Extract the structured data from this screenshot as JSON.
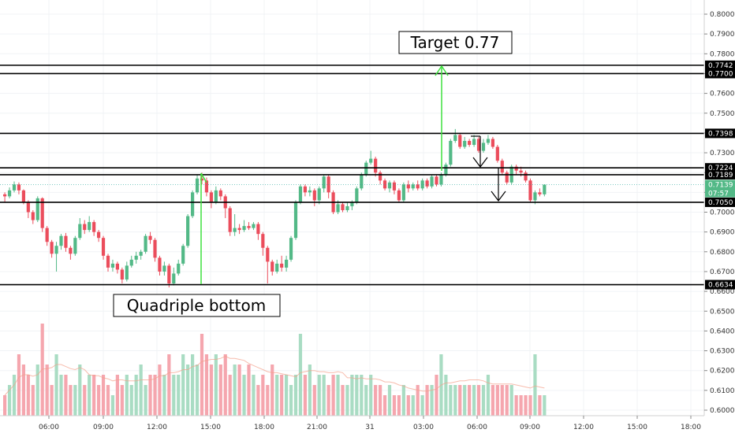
{
  "chart_data": {
    "type": "candlestick",
    "y_axis": {
      "ticks": [
        "0.8000",
        "0.7900",
        "0.7800",
        "0.7700",
        "0.7600",
        "0.7500",
        "0.7400",
        "0.7300",
        "0.7200",
        "0.7100",
        "0.7000",
        "0.6900",
        "0.6800",
        "0.6700",
        "0.6600",
        "0.6500",
        "0.6400",
        "0.6300",
        "0.6200",
        "0.6100",
        "0.6000"
      ],
      "range": [
        0.5975,
        0.8025
      ],
      "side": "right"
    },
    "x_axis": {
      "ticks": [
        "06:00",
        "09:00",
        "12:00",
        "15:00",
        "18:00",
        "21:00",
        "31",
        "03:00",
        "06:00",
        "09:00",
        "12:00",
        "15:00",
        "18:00"
      ]
    },
    "levels": [
      {
        "label": "0.7742",
        "value": 0.7742
      },
      {
        "label": "0.7700",
        "value": 0.77
      },
      {
        "label": "0.7398",
        "value": 0.7398
      },
      {
        "label": "0.7224",
        "value": 0.7224
      },
      {
        "label": "0.7189",
        "value": 0.7189
      },
      {
        "label": "0.7050",
        "value": 0.705
      },
      {
        "label": "0.6634",
        "value": 0.6634
      }
    ],
    "last_price": {
      "value": 0.7139,
      "label": "0.7139",
      "countdown": "07:57"
    },
    "annotations": [
      {
        "text": "Target 0.77"
      },
      {
        "text": "Quadriple bottom"
      }
    ],
    "candles": [
      [
        0.709,
        0.708,
        0.71,
        0.705
      ],
      [
        0.708,
        0.711,
        0.7125,
        0.707
      ],
      [
        0.711,
        0.714,
        0.7155,
        0.71
      ],
      [
        0.714,
        0.711,
        0.715,
        0.709
      ],
      [
        0.711,
        0.705,
        0.7115,
        0.704
      ],
      [
        0.705,
        0.7,
        0.706,
        0.697
      ],
      [
        0.7,
        0.696,
        0.701,
        0.694
      ],
      [
        0.696,
        0.707,
        0.708,
        0.695
      ],
      [
        0.707,
        0.692,
        0.7075,
        0.69
      ],
      [
        0.692,
        0.685,
        0.693,
        0.683
      ],
      [
        0.685,
        0.679,
        0.686,
        0.677
      ],
      [
        0.679,
        0.683,
        0.685,
        0.67
      ],
      [
        0.683,
        0.688,
        0.689,
        0.681
      ],
      [
        0.688,
        0.682,
        0.6895,
        0.68
      ],
      [
        0.682,
        0.679,
        0.683,
        0.676
      ],
      [
        0.679,
        0.687,
        0.688,
        0.678
      ],
      [
        0.687,
        0.694,
        0.697,
        0.686
      ],
      [
        0.694,
        0.691,
        0.696,
        0.689
      ],
      [
        0.691,
        0.695,
        0.698,
        0.69
      ],
      [
        0.695,
        0.69,
        0.696,
        0.688
      ],
      [
        0.69,
        0.687,
        0.691,
        0.685
      ],
      [
        0.687,
        0.678,
        0.688,
        0.676
      ],
      [
        0.678,
        0.672,
        0.679,
        0.67
      ],
      [
        0.672,
        0.674,
        0.676,
        0.67
      ],
      [
        0.674,
        0.671,
        0.675,
        0.669
      ],
      [
        0.671,
        0.666,
        0.672,
        0.664
      ],
      [
        0.666,
        0.673,
        0.675,
        0.665
      ],
      [
        0.673,
        0.676,
        0.678,
        0.672
      ],
      [
        0.676,
        0.678,
        0.68,
        0.674
      ],
      [
        0.678,
        0.68,
        0.681,
        0.676
      ],
      [
        0.68,
        0.688,
        0.689,
        0.679
      ],
      [
        0.688,
        0.686,
        0.69,
        0.684
      ],
      [
        0.686,
        0.677,
        0.687,
        0.675
      ],
      [
        0.677,
        0.67,
        0.678,
        0.668
      ],
      [
        0.67,
        0.673,
        0.675,
        0.668
      ],
      [
        0.673,
        0.664,
        0.674,
        0.662
      ],
      [
        0.664,
        0.669,
        0.672,
        0.663
      ],
      [
        0.669,
        0.674,
        0.676,
        0.668
      ],
      [
        0.674,
        0.683,
        0.684,
        0.673
      ],
      [
        0.683,
        0.698,
        0.699,
        0.682
      ],
      [
        0.698,
        0.71,
        0.711,
        0.697
      ],
      [
        0.71,
        0.717,
        0.719,
        0.709
      ],
      [
        0.717,
        0.716,
        0.72,
        0.714
      ],
      [
        0.716,
        0.71,
        0.7175,
        0.708
      ],
      [
        0.71,
        0.705,
        0.711,
        0.702
      ],
      [
        0.705,
        0.711,
        0.713,
        0.704
      ],
      [
        0.711,
        0.708,
        0.712,
        0.706
      ],
      [
        0.708,
        0.702,
        0.709,
        0.697
      ],
      [
        0.702,
        0.69,
        0.703,
        0.688
      ],
      [
        0.69,
        0.692,
        0.699,
        0.688
      ],
      [
        0.692,
        0.691,
        0.694,
        0.689
      ],
      [
        0.691,
        0.693,
        0.696,
        0.69
      ],
      [
        0.693,
        0.692,
        0.695,
        0.691
      ],
      [
        0.692,
        0.694,
        0.695,
        0.691
      ],
      [
        0.694,
        0.689,
        0.695,
        0.686
      ],
      [
        0.689,
        0.682,
        0.69,
        0.678
      ],
      [
        0.682,
        0.675,
        0.683,
        0.664
      ],
      [
        0.675,
        0.67,
        0.676,
        0.668
      ],
      [
        0.67,
        0.674,
        0.676,
        0.669
      ],
      [
        0.674,
        0.672,
        0.678,
        0.67
      ],
      [
        0.672,
        0.676,
        0.678,
        0.67
      ],
      [
        0.676,
        0.687,
        0.688,
        0.675
      ],
      [
        0.687,
        0.705,
        0.706,
        0.686
      ],
      [
        0.705,
        0.713,
        0.714,
        0.704
      ],
      [
        0.713,
        0.71,
        0.714,
        0.708
      ],
      [
        0.71,
        0.711,
        0.713,
        0.708
      ],
      [
        0.711,
        0.706,
        0.712,
        0.703
      ],
      [
        0.706,
        0.712,
        0.713,
        0.704
      ],
      [
        0.712,
        0.718,
        0.719,
        0.71
      ],
      [
        0.718,
        0.71,
        0.719,
        0.707
      ],
      [
        0.71,
        0.7,
        0.711,
        0.699
      ],
      [
        0.7,
        0.704,
        0.706,
        0.699
      ],
      [
        0.704,
        0.701,
        0.705,
        0.7
      ],
      [
        0.701,
        0.703,
        0.705,
        0.7
      ],
      [
        0.703,
        0.705,
        0.706,
        0.701
      ],
      [
        0.705,
        0.712,
        0.713,
        0.704
      ],
      [
        0.712,
        0.719,
        0.72,
        0.711
      ],
      [
        0.719,
        0.725,
        0.726,
        0.718
      ],
      [
        0.725,
        0.727,
        0.731,
        0.724
      ],
      [
        0.727,
        0.72,
        0.728,
        0.718
      ],
      [
        0.72,
        0.716,
        0.721,
        0.714
      ],
      [
        0.716,
        0.712,
        0.717,
        0.711
      ],
      [
        0.712,
        0.715,
        0.716,
        0.71
      ],
      [
        0.715,
        0.711,
        0.716,
        0.709
      ],
      [
        0.711,
        0.706,
        0.712,
        0.705
      ],
      [
        0.706,
        0.714,
        0.715,
        0.705
      ],
      [
        0.714,
        0.712,
        0.716,
        0.71
      ],
      [
        0.712,
        0.714,
        0.715,
        0.711
      ],
      [
        0.714,
        0.712,
        0.716,
        0.711
      ],
      [
        0.712,
        0.716,
        0.717,
        0.711
      ],
      [
        0.716,
        0.713,
        0.717,
        0.712
      ],
      [
        0.713,
        0.718,
        0.719,
        0.712
      ],
      [
        0.718,
        0.714,
        0.719,
        0.713
      ],
      [
        0.714,
        0.719,
        0.72,
        0.713
      ],
      [
        0.719,
        0.724,
        0.725,
        0.718
      ],
      [
        0.724,
        0.736,
        0.737,
        0.723
      ],
      [
        0.736,
        0.739,
        0.742,
        0.735
      ],
      [
        0.739,
        0.733,
        0.74,
        0.732
      ],
      [
        0.733,
        0.736,
        0.738,
        0.732
      ],
      [
        0.736,
        0.734,
        0.737,
        0.733
      ],
      [
        0.734,
        0.737,
        0.739,
        0.733
      ],
      [
        0.737,
        0.731,
        0.738,
        0.73
      ],
      [
        0.731,
        0.735,
        0.737,
        0.73
      ],
      [
        0.735,
        0.737,
        0.739,
        0.734
      ],
      [
        0.737,
        0.733,
        0.738,
        0.732
      ],
      [
        0.733,
        0.726,
        0.734,
        0.725
      ],
      [
        0.726,
        0.72,
        0.727,
        0.719
      ],
      [
        0.72,
        0.715,
        0.721,
        0.714
      ],
      [
        0.715,
        0.723,
        0.724,
        0.714
      ],
      [
        0.723,
        0.721,
        0.724,
        0.719
      ],
      [
        0.721,
        0.72,
        0.723,
        0.718
      ],
      [
        0.72,
        0.716,
        0.721,
        0.715
      ],
      [
        0.716,
        0.706,
        0.717,
        0.705
      ],
      [
        0.706,
        0.71,
        0.711,
        0.704
      ],
      [
        0.71,
        0.709,
        0.712,
        0.708
      ],
      [
        0.709,
        0.7139,
        0.714,
        0.708
      ]
    ],
    "volume": [
      0.2,
      0.3,
      0.4,
      0.6,
      0.5,
      0.4,
      0.3,
      0.5,
      0.9,
      0.5,
      0.3,
      0.6,
      0.4,
      0.4,
      0.3,
      0.3,
      0.5,
      0.3,
      0.4,
      0.4,
      0.3,
      0.4,
      0.3,
      0.2,
      0.4,
      0.3,
      0.4,
      0.3,
      0.4,
      0.5,
      0.3,
      0.4,
      0.4,
      0.5,
      0.4,
      0.6,
      0.4,
      0.4,
      0.6,
      0.5,
      0.6,
      0.5,
      0.8,
      0.6,
      0.5,
      0.6,
      0.5,
      0.6,
      0.4,
      0.5,
      0.5,
      0.4,
      0.5,
      0.4,
      0.3,
      0.4,
      0.3,
      0.5,
      0.4,
      0.4,
      0.4,
      0.3,
      0.4,
      0.8,
      0.4,
      0.5,
      0.3,
      0.4,
      0.4,
      0.3,
      0.4,
      0.4,
      0.3,
      0.3,
      0.4,
      0.4,
      0.4,
      0.3,
      0.4,
      0.3,
      0.3,
      0.2,
      0.3,
      0.2,
      0.2,
      0.3,
      0.2,
      0.2,
      0.3,
      0.2,
      0.3,
      0.3,
      0.4,
      0.6,
      0.4,
      0.3,
      0.3,
      0.3,
      0.3,
      0.3,
      0.3,
      0.3,
      0.3,
      0.4,
      0.3,
      0.3,
      0.3,
      0.3,
      0.3,
      0.2,
      0.2,
      0.2,
      0.2,
      0.6,
      0.2,
      0.2
    ]
  }
}
